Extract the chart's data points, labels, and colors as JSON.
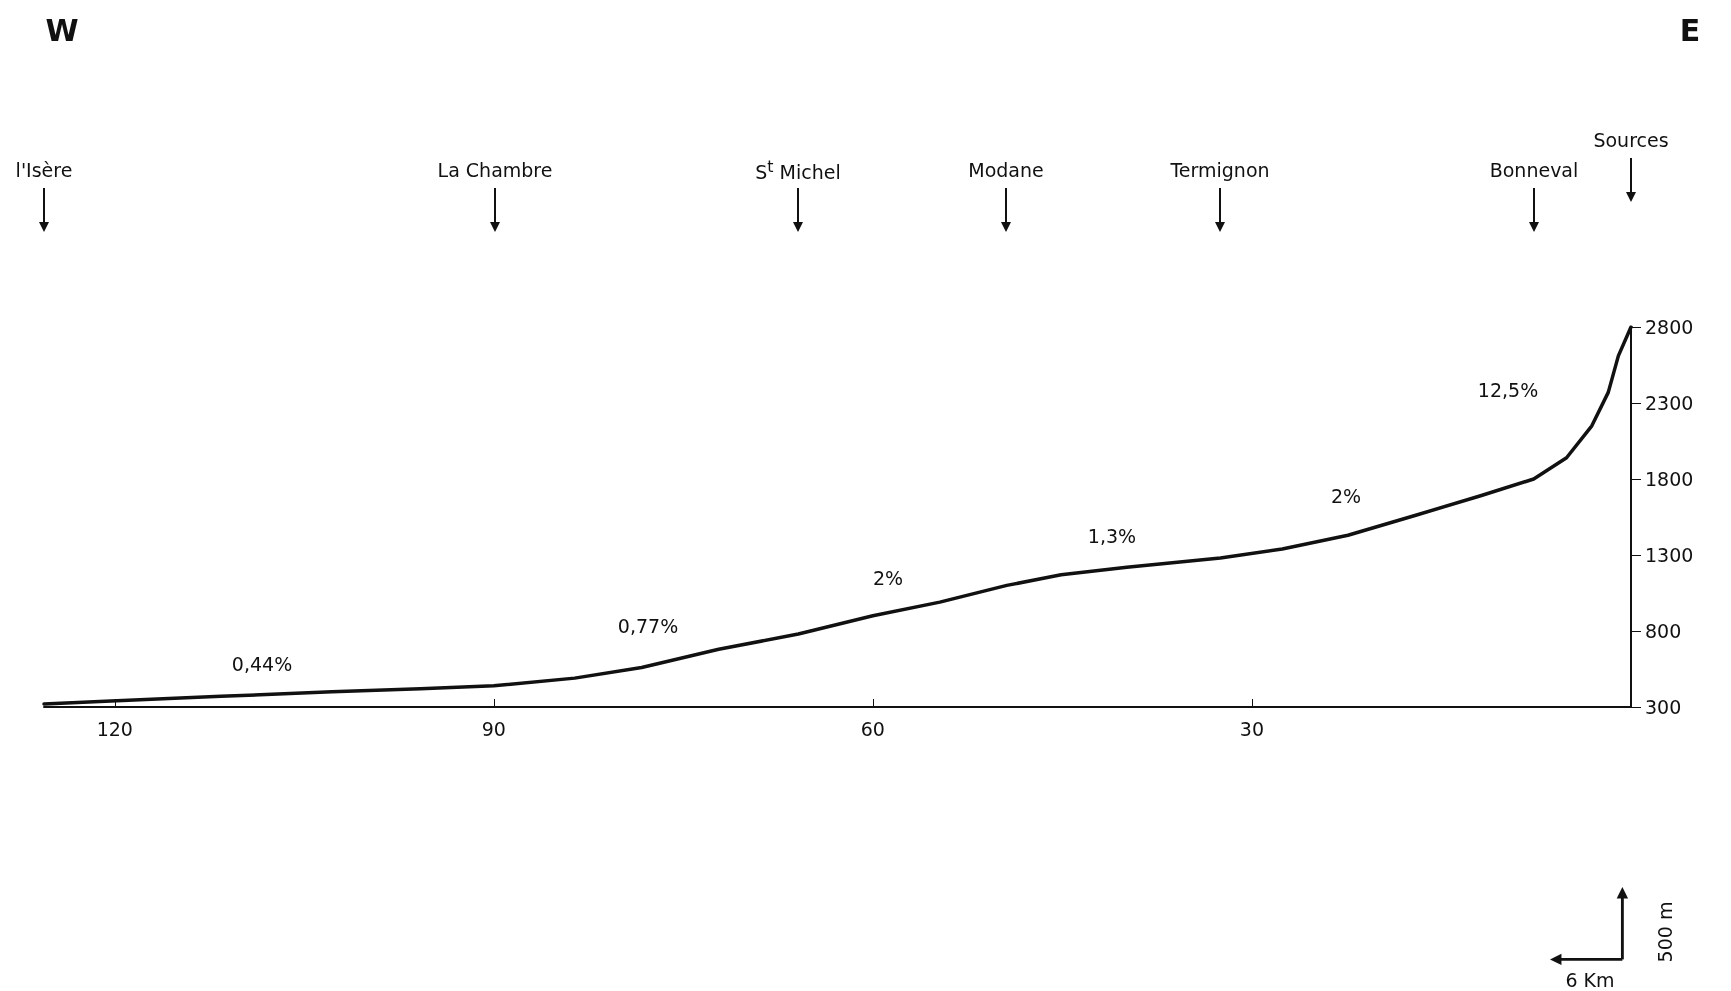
{
  "chart_data": {
    "type": "line",
    "x": [
      125.6,
      120.3,
      111.6,
      102.8,
      95.8,
      90,
      83.6,
      78.3,
      72.2,
      65.9,
      60,
      54.7,
      49.4,
      45.1,
      39.9,
      32.5,
      27.6,
      22.4,
      17.1,
      11.9,
      7.7,
      5.1,
      3.1,
      1.8,
      1,
      0
    ],
    "series": [
      {
        "color": "#111111",
        "values": [
          320,
          340,
          370,
          400,
          420,
          440,
          490,
          560,
          680,
          780,
          900,
          990,
          1100,
          1170,
          1220,
          1280,
          1340,
          1430,
          1560,
          1690,
          1800,
          1940,
          2150,
          2370,
          2610,
          2800
        ]
      }
    ],
    "xlim": [
      125.6,
      0
    ],
    "xticks": [
      120,
      90,
      60,
      30
    ],
    "ylim": [
      300,
      2800
    ],
    "yticks": [
      300,
      800,
      1300,
      1800,
      2300,
      2800
    ],
    "annotations": [
      "W",
      "E",
      "6 Km",
      "500 m",
      "l'Isère",
      "La Chambre",
      "S$^{t}$ Michel",
      "Modane",
      "Termignon",
      "Bonneval",
      "Sources",
      "0,44%",
      "0,77%",
      "2%",
      "1,3%",
      "2%",
      "12,5%"
    ]
  }
}
